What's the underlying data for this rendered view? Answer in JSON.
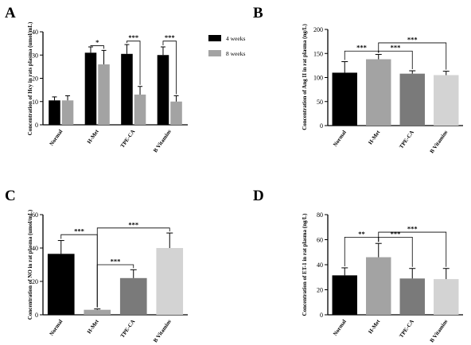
{
  "chart_data": [
    {
      "panel": "A",
      "type": "bar",
      "ylabel": "Concentration of Hcy in rats plasma (umol/mL)",
      "ylim": [
        0,
        40
      ],
      "yticks": [
        0,
        10,
        20,
        30,
        40
      ],
      "categories": [
        "Normal",
        "H-Met",
        "TPE-CA",
        "B Vitamins"
      ],
      "series": [
        {
          "name": "4 weeks",
          "color": "#000000",
          "values": [
            10.5,
            31,
            30.5,
            30
          ],
          "errors": [
            1.5,
            2.5,
            4,
            3.5
          ]
        },
        {
          "name": "8 weeks",
          "color": "#a3a3a3",
          "values": [
            10.5,
            26,
            13,
            10
          ],
          "errors": [
            2,
            6,
            3.5,
            2.5
          ]
        }
      ],
      "comparisons": [
        {
          "from": [
            1,
            0
          ],
          "to": [
            1,
            1
          ],
          "label": "*",
          "y": 34
        },
        {
          "from": [
            2,
            0
          ],
          "to": [
            2,
            1
          ],
          "label": "***",
          "y": 36
        },
        {
          "from": [
            3,
            0
          ],
          "to": [
            3,
            1
          ],
          "label": "***",
          "y": 36
        }
      ]
    },
    {
      "panel": "B",
      "type": "bar",
      "ylabel": "Concentration of Ang II in rat plasma (ng/L)",
      "ylim": [
        0,
        200
      ],
      "yticks": [
        0,
        50,
        100,
        150,
        200
      ],
      "categories": [
        "Normal",
        "H-Met",
        "TPE-CA",
        "B Vitamins"
      ],
      "colors": [
        "#000000",
        "#a3a3a3",
        "#7a7a7a",
        "#d3d3d3"
      ],
      "values": [
        110,
        138,
        108,
        105
      ],
      "errors": [
        23,
        10,
        6,
        8
      ],
      "comparisons": [
        {
          "from": 0,
          "to": 1,
          "label": "***",
          "y": 155
        },
        {
          "from": 1,
          "to": 2,
          "label": "***",
          "y": 155
        },
        {
          "from": 1,
          "to": 3,
          "label": "***",
          "y": 172
        }
      ]
    },
    {
      "panel": "C",
      "type": "bar",
      "ylabel": "Concentration of NO in rat plasma (umol/mL)",
      "ylim": [
        0,
        60
      ],
      "yticks": [
        0,
        20,
        40,
        60
      ],
      "categories": [
        "Normal",
        "H-Met",
        "TPE-CA",
        "B Vitamins"
      ],
      "colors": [
        "#000000",
        "#a3a3a3",
        "#7a7a7a",
        "#d3d3d3"
      ],
      "values": [
        36.5,
        3,
        22,
        40
      ],
      "errors": [
        8,
        0.5,
        5,
        9
      ],
      "comparisons": [
        {
          "from": 0,
          "to": 1,
          "label": "***",
          "y": 48
        },
        {
          "from": 1,
          "to": 2,
          "label": "***",
          "y": 30
        },
        {
          "from": 1,
          "to": 3,
          "label": "***",
          "y": 52
        }
      ]
    },
    {
      "panel": "D",
      "type": "bar",
      "ylabel": "Concentration of ET-1 in rat plasma (ng/L)",
      "ylim": [
        0,
        80
      ],
      "yticks": [
        0,
        20,
        40,
        60,
        80
      ],
      "categories": [
        "Normal",
        "H-Met",
        "TPE-CA",
        "B Vitamins"
      ],
      "colors": [
        "#000000",
        "#a3a3a3",
        "#7a7a7a",
        "#d3d3d3"
      ],
      "values": [
        31.5,
        46,
        29,
        28.5
      ],
      "errors": [
        6,
        11,
        8,
        8.5
      ],
      "comparisons": [
        {
          "from": 0,
          "to": 1,
          "label": "**",
          "y": 62
        },
        {
          "from": 1,
          "to": 2,
          "label": "***",
          "y": 62
        },
        {
          "from": 1,
          "to": 3,
          "label": "***",
          "y": 66
        }
      ]
    }
  ]
}
